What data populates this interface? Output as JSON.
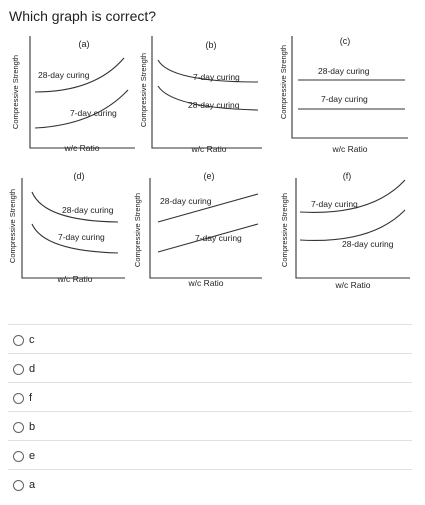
{
  "question": "Which graph is correct?",
  "figure": {
    "y_axis_label": "Compressive Strength",
    "x_axis_label": "w/c Ratio",
    "panels": [
      {
        "label": "(a)",
        "curve_top": "28-day curing",
        "curve_bottom": "7-day curing"
      },
      {
        "label": "(b)",
        "curve_top": "7-day curing",
        "curve_bottom": "28-day curing"
      },
      {
        "label": "(c)",
        "curve_top": "28-day curing",
        "curve_bottom": "7-day curing"
      },
      {
        "label": "(d)",
        "curve_top": "28-day curing",
        "curve_bottom": "7-day curing"
      },
      {
        "label": "(e)",
        "curve_top": "28-day curing",
        "curve_bottom": "7-day curing"
      },
      {
        "label": "(f)",
        "curve_top": "7-day curing",
        "curve_bottom": "28-day curing"
      }
    ]
  },
  "options": [
    "c",
    "d",
    "f",
    "b",
    "e",
    "a"
  ]
}
